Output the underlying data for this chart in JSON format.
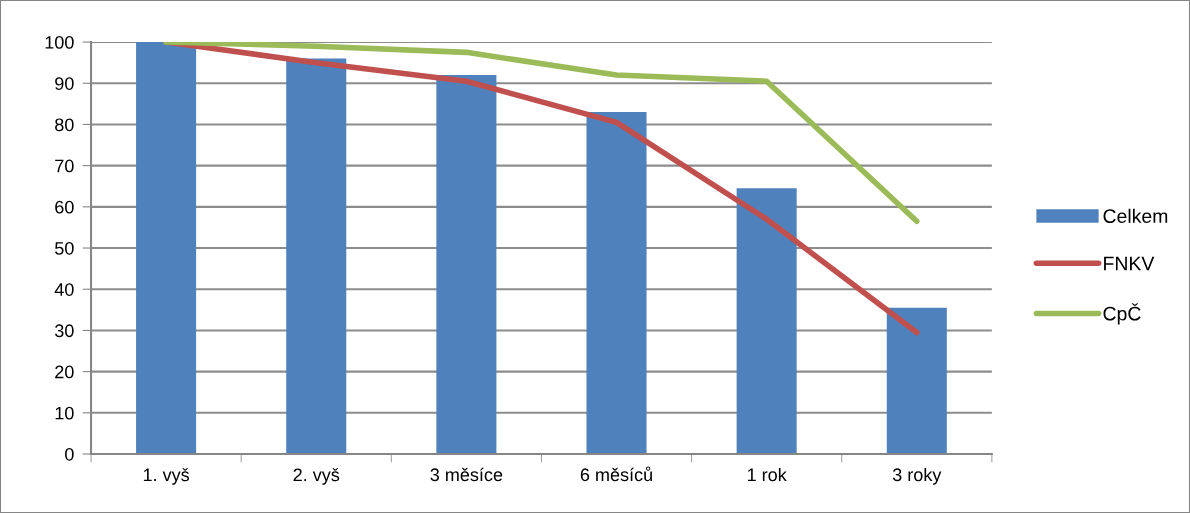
{
  "chart_data": {
    "type": "bar",
    "categories": [
      "1. vyš",
      "2. vyš",
      "3 měsíce",
      "6 měsíců",
      "1 rok",
      "3 roky"
    ],
    "series": [
      {
        "name": "Celkem",
        "color": "#4f81bd",
        "values": [
          100,
          96,
          92,
          83,
          64.5,
          35.5
        ]
      },
      {
        "name": "FNKV",
        "type": "line",
        "color": "#c0504d",
        "values": [
          100,
          95,
          90.5,
          80.5,
          57,
          29.5
        ]
      },
      {
        "name": "CpČ",
        "type": "line",
        "color": "#9bbb59",
        "values": [
          100,
          99,
          97.5,
          92,
          90.5,
          56.5
        ]
      }
    ],
    "ylim": [
      0,
      100
    ],
    "yticks": [
      0,
      10,
      20,
      30,
      40,
      50,
      60,
      70,
      80,
      90,
      100
    ],
    "grid": "y",
    "legend": "right",
    "marker": "none",
    "line_style": "solid"
  }
}
